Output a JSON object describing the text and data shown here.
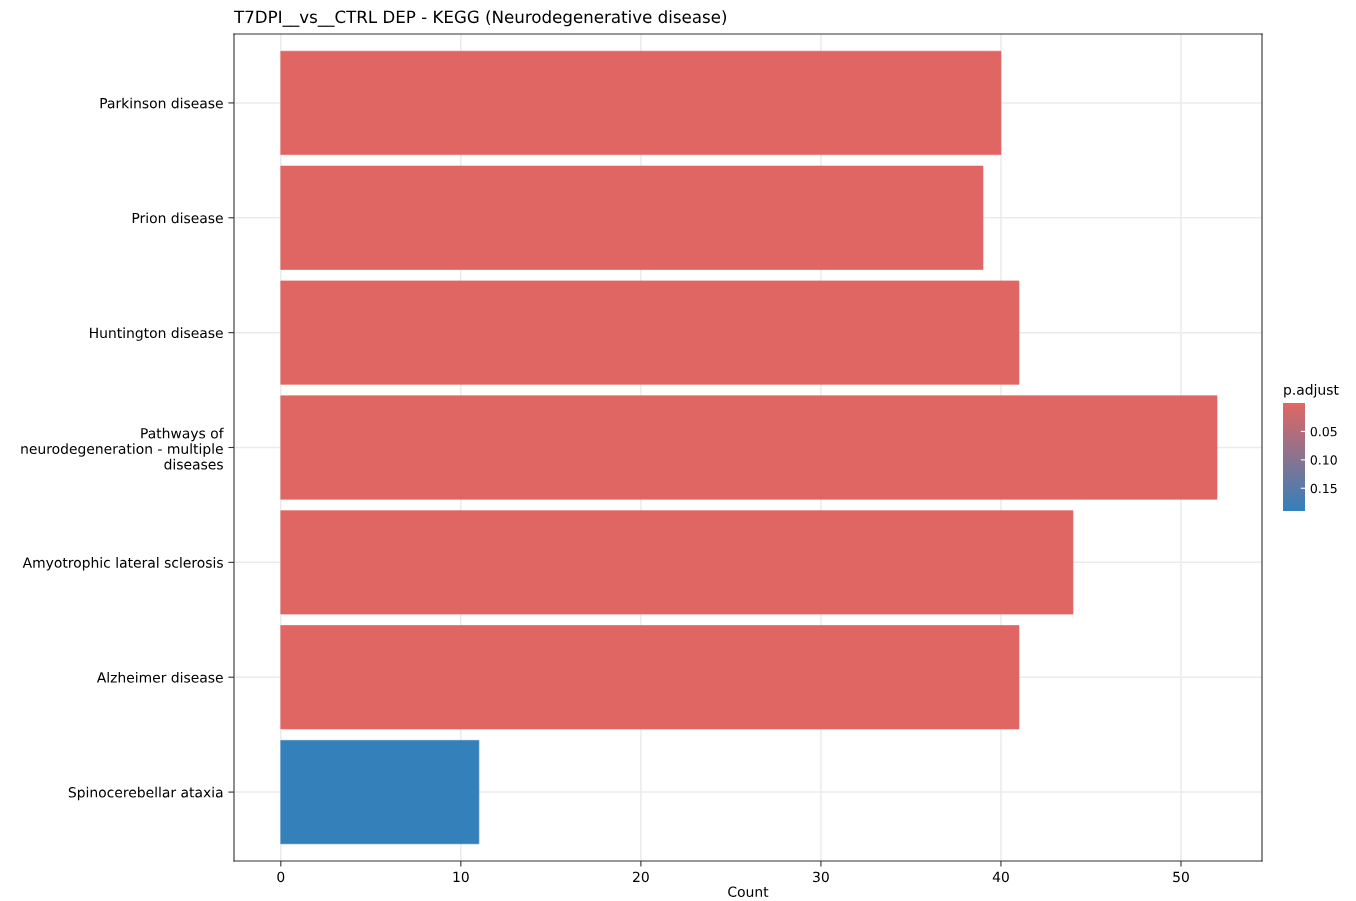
{
  "chart_data": {
    "type": "bar",
    "orientation": "horizontal",
    "title": "T7DPI__vs__CTRL DEP - KEGG (Neurodegenerative disease)",
    "xlabel": "Count",
    "clabel": "p.adjust",
    "categories": [
      "Parkinson disease",
      "Prion disease",
      "Huntington disease",
      "Pathways of\nneurodegeneration - multiple\ndiseases",
      "Amyotrophic lateral sclerosis",
      "Alzheimer disease",
      "Spinocerebellar ataxia"
    ],
    "values": [
      40,
      39,
      41,
      52,
      44,
      41,
      11
    ],
    "cvalues": [
      0,
      0,
      0,
      0,
      0,
      0,
      0.19
    ],
    "colors": [
      "#e06663",
      "#e06663",
      "#e06663",
      "#e06663",
      "#e06663",
      "#e06663",
      "#3480bb"
    ],
    "clim": [
      0,
      0.19
    ],
    "cticks": [
      0.05,
      {
        "value": 0.1,
        "label": "0.10"
      },
      0.15
    ],
    "xlim": [
      -2.6,
      54.5
    ],
    "xticks": [
      0,
      10,
      20,
      30,
      40,
      50
    ],
    "grid": true
  }
}
